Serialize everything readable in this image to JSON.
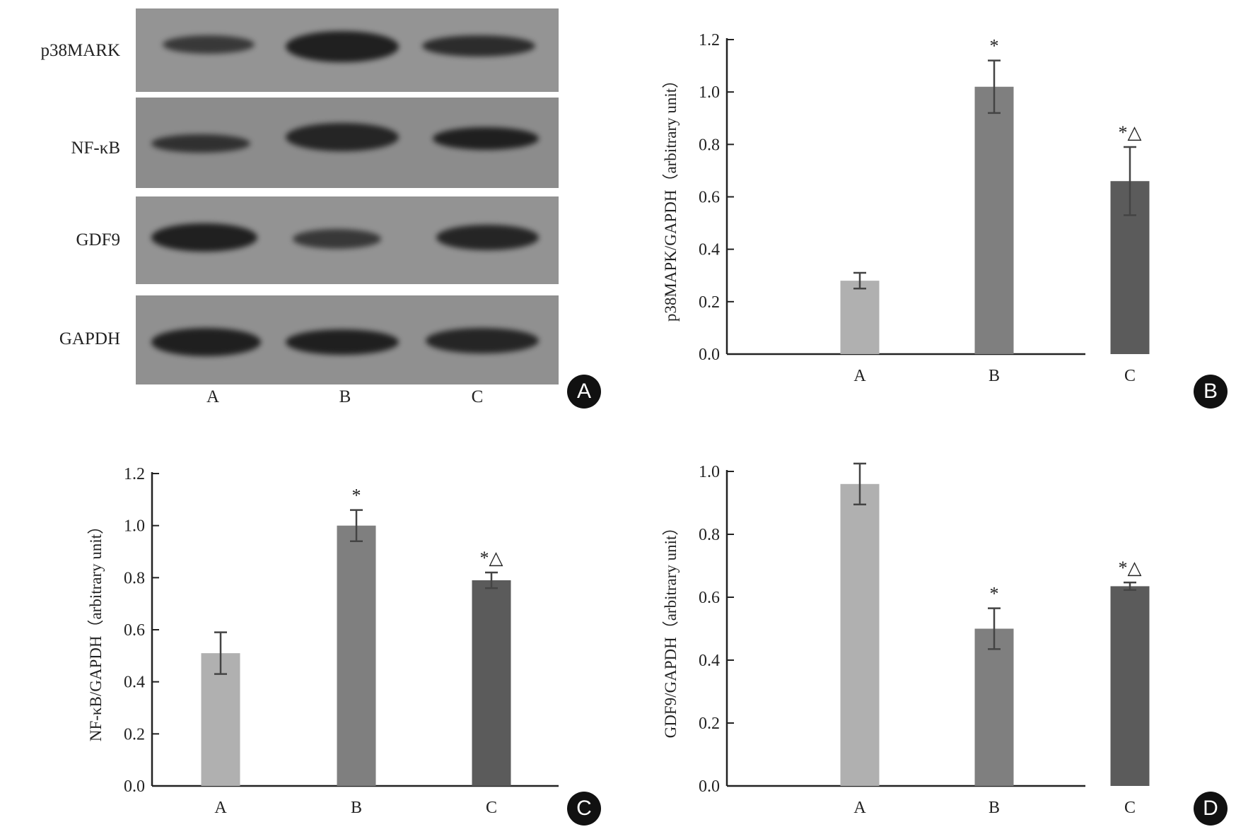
{
  "panel_a": {
    "badge": "A",
    "blots": [
      {
        "label": "p38MARK"
      },
      {
        "label": "NF-κB"
      },
      {
        "label": "GDF9"
      },
      {
        "label": "GAPDH"
      }
    ],
    "lanes": [
      "A",
      "B",
      "C"
    ]
  },
  "colors": {
    "bar_A": "#b0b0b0",
    "bar_B": "#7f7f7f",
    "bar_C": "#5b5b5b",
    "axis": "#222222"
  },
  "chart_data": [
    {
      "panel": "B",
      "type": "bar",
      "categories": [
        "A",
        "B",
        "C"
      ],
      "values": [
        0.28,
        1.02,
        0.66
      ],
      "errors": [
        0.03,
        0.1,
        0.13
      ],
      "annotations": [
        "",
        "*",
        "*△"
      ],
      "ylabel": "p38MAPK/GAPDH（arbitrary unit）",
      "ylim": [
        0,
        1.2
      ],
      "yticks": [
        "0.0",
        "0.2",
        "0.4",
        "0.6",
        "0.8",
        "1.0",
        "1.2"
      ],
      "grid": false
    },
    {
      "panel": "C",
      "type": "bar",
      "categories": [
        "A",
        "B",
        "C"
      ],
      "values": [
        0.51,
        1.0,
        0.79
      ],
      "errors": [
        0.08,
        0.06,
        0.03
      ],
      "annotations": [
        "",
        "*",
        "*△"
      ],
      "ylabel": "NF-κB/GAPDH（arbitrary unit）",
      "ylim": [
        0,
        1.2
      ],
      "yticks": [
        "0.0",
        "0.2",
        "0.4",
        "0.6",
        "0.8",
        "1.0",
        "1.2"
      ],
      "grid": false
    },
    {
      "panel": "D",
      "type": "bar",
      "categories": [
        "A",
        "B",
        "C"
      ],
      "values": [
        0.96,
        0.5,
        0.635
      ],
      "errors": [
        0.065,
        0.065,
        0.012
      ],
      "annotations": [
        "",
        "*",
        "*△"
      ],
      "ylabel": "GDF9/GAPDH（arbitrary unit）",
      "ylim": [
        0,
        1.0
      ],
      "yticks": [
        "0.0",
        "0.2",
        "0.4",
        "0.6",
        "0.8",
        "1.0"
      ],
      "grid": false
    }
  ]
}
